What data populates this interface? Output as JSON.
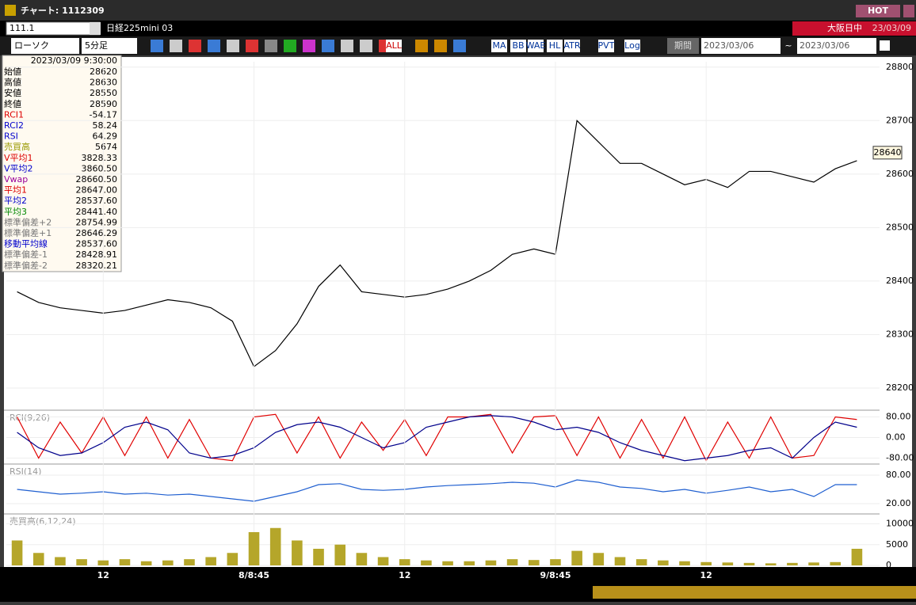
{
  "window": {
    "title": "チャート: 1112309",
    "hot": "HOT"
  },
  "toolbar": {
    "symbol": "111.1",
    "name": "日経225mini 03",
    "session": "大阪日中",
    "session_date": "23/03/09",
    "chart_type": "ローソク",
    "interval": "5分足",
    "buttons": [
      "ALL",
      "MA",
      "BB",
      "WAE",
      "HL",
      "ATR",
      "PVT",
      "Log"
    ],
    "period": "期間",
    "from": "2023/03/06",
    "separator": "~",
    "to": "2023/03/06"
  },
  "info_panel": {
    "timestamp": "2023/03/09 9:30:00",
    "rows": [
      {
        "label": "始値",
        "value": "28620"
      },
      {
        "label": "高値",
        "value": "28630"
      },
      {
        "label": "安値",
        "value": "28550"
      },
      {
        "label": "終値",
        "value": "28590"
      },
      {
        "label": "RCI1",
        "value": "-54.17"
      },
      {
        "label": "RCI2",
        "value": "58.24"
      },
      {
        "label": "RSI",
        "value": "64.29"
      },
      {
        "label": "売買高",
        "value": "5674"
      },
      {
        "label": "V平均1",
        "value": "3828.33"
      },
      {
        "label": "V平均2",
        "value": "3860.50"
      },
      {
        "label": "Vwap",
        "value": "28660.50"
      },
      {
        "label": "平均1",
        "value": "28647.00"
      },
      {
        "label": "平均2",
        "value": "28537.60"
      },
      {
        "label": "平均3",
        "value": "28441.40"
      },
      {
        "label": "標準偏差+2",
        "value": "28754.99"
      },
      {
        "label": "標準偏差+1",
        "value": "28646.29"
      },
      {
        "label": "移動平均線",
        "value": "28537.60"
      },
      {
        "label": "標準偏差-1",
        "value": "28428.91"
      },
      {
        "label": "標準偏差-2",
        "value": "28320.21"
      }
    ]
  },
  "chart_data": [
    {
      "type": "line",
      "ylim": [
        28160,
        28810
      ],
      "yticks": [
        28200,
        28300,
        28400,
        28500,
        28600,
        28700,
        28800
      ],
      "current_price": 28640,
      "series": [
        {
          "color": "#000000",
          "values": [
            28380,
            28360,
            28350,
            28345,
            28340,
            28345,
            28355,
            28365,
            28360,
            28350,
            28325,
            28240,
            28270,
            28320,
            28390,
            28430,
            28380,
            28375,
            28370,
            28375,
            28385,
            28400,
            28420,
            28450,
            28460,
            28450,
            28700,
            28660,
            28620,
            28620,
            28600,
            28580,
            28590,
            28575,
            28605,
            28605,
            28595,
            28585,
            28610,
            28625
          ]
        }
      ]
    },
    {
      "type": "line",
      "title": "RCI(9,26)",
      "ylim": [
        -100,
        100
      ],
      "yticks": [
        {
          "value": 80,
          "label": "80.00"
        },
        {
          "value": 0,
          "label": "0.00"
        },
        {
          "value": -80,
          "label": "-80.00"
        }
      ],
      "series": [
        {
          "color": "#e00000",
          "values": [
            80,
            -80,
            60,
            -60,
            80,
            -70,
            80,
            -80,
            70,
            -80,
            -90,
            80,
            90,
            -60,
            80,
            -80,
            60,
            -50,
            70,
            -70,
            80,
            80,
            90,
            -60,
            80,
            85,
            -70,
            80,
            -80,
            70,
            -80,
            80,
            -90,
            60,
            -80,
            80,
            -80,
            -70,
            80,
            70
          ]
        },
        {
          "color": "#00008b",
          "values": [
            20,
            -40,
            -70,
            -60,
            -20,
            40,
            60,
            30,
            -60,
            -80,
            -70,
            -40,
            20,
            50,
            60,
            40,
            0,
            -40,
            -20,
            40,
            60,
            80,
            85,
            80,
            60,
            30,
            40,
            20,
            -20,
            -50,
            -70,
            -90,
            -80,
            -70,
            -50,
            -40,
            -80,
            0,
            60,
            40
          ]
        }
      ]
    },
    {
      "type": "line",
      "title": "RSI(14)",
      "ylim": [
        0,
        100
      ],
      "yticks": [
        {
          "value": 80,
          "label": "80.00"
        },
        {
          "value": 20,
          "label": "20.00"
        }
      ],
      "series": [
        {
          "color": "#1f5fd0",
          "values": [
            50,
            45,
            40,
            42,
            45,
            40,
            42,
            38,
            40,
            35,
            30,
            25,
            35,
            45,
            60,
            62,
            50,
            48,
            50,
            55,
            58,
            60,
            62,
            65,
            63,
            55,
            70,
            65,
            55,
            52,
            45,
            50,
            42,
            48,
            55,
            45,
            50,
            35,
            60,
            60
          ]
        }
      ]
    },
    {
      "type": "bar",
      "title": "売買高(6,12,24)",
      "ylim": [
        0,
        12000
      ],
      "yticks": [
        10000,
        5000,
        0
      ],
      "categories": [
        null,
        null,
        null,
        null,
        "12",
        null,
        null,
        null,
        null,
        null,
        null,
        "8/8:45",
        null,
        null,
        null,
        null,
        null,
        null,
        "12",
        null,
        null,
        null,
        null,
        null,
        null,
        "9/8:45",
        null,
        null,
        null,
        null,
        null,
        null,
        "12",
        null,
        null,
        null,
        null,
        null,
        null,
        null
      ],
      "series": [
        {
          "color": "#b5a62a",
          "values": [
            6000,
            3000,
            2000,
            1500,
            1200,
            1500,
            1000,
            1200,
            1500,
            2000,
            3000,
            8000,
            9000,
            6000,
            4000,
            5000,
            3000,
            2000,
            1500,
            1200,
            1000,
            1000,
            1200,
            1500,
            1300,
            1500,
            3500,
            3000,
            2000,
            1500,
            1200,
            1000,
            800,
            700,
            600,
            500,
            600,
            700,
            800,
            4000
          ]
        }
      ]
    }
  ]
}
